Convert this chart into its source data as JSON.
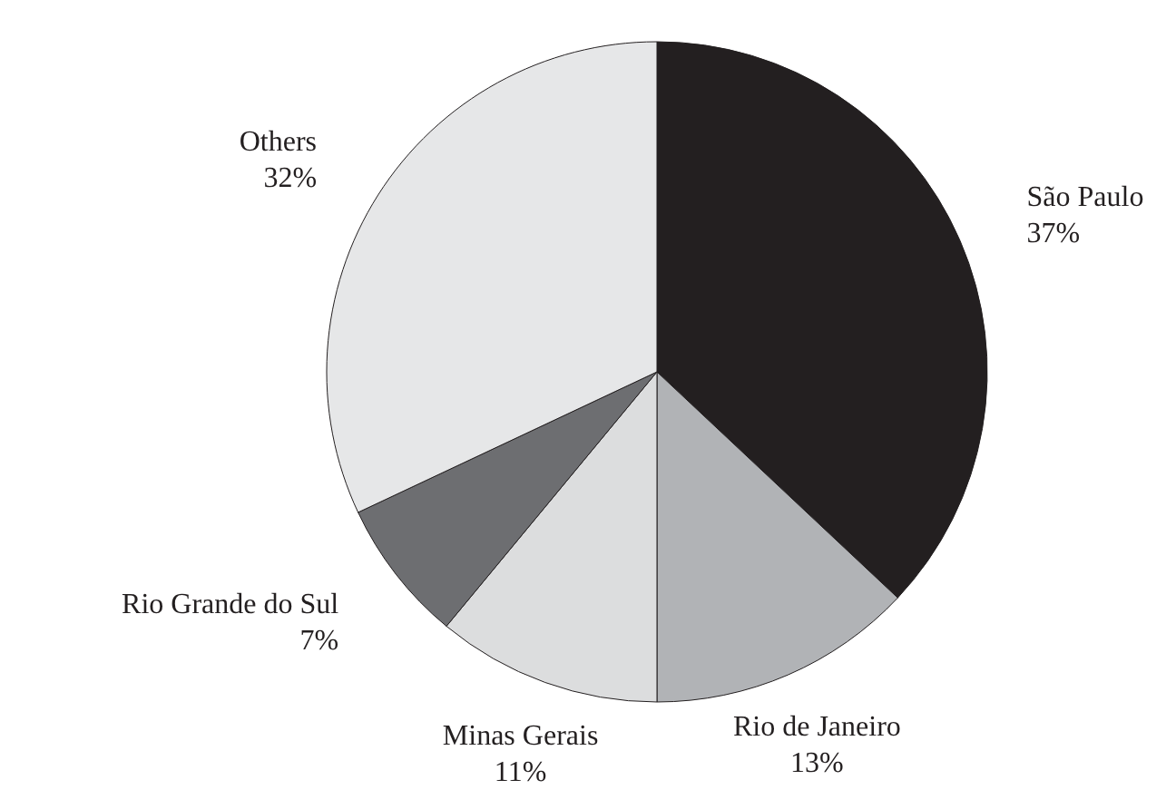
{
  "chart_data": {
    "type": "pie",
    "categories": [
      "São Paulo",
      "Rio de Janeiro",
      "Minas Gerais",
      "Rio Grande do Sul",
      "Others"
    ],
    "values": [
      37,
      13,
      11,
      7,
      32
    ],
    "value_labels": [
      "37%",
      "13%",
      "11%",
      "7%",
      "32%"
    ],
    "colors": [
      "#231f20",
      "#b1b3b6",
      "#dcddde",
      "#6d6e71",
      "#e6e7e8"
    ]
  }
}
